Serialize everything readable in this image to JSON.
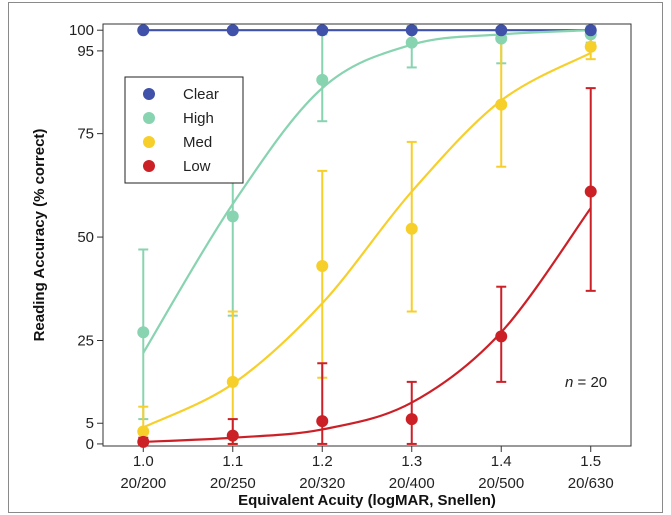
{
  "chart_data": {
    "type": "scatter",
    "ylabel": "Reading Accuracy (% correct)",
    "xlabel": "Equivalent Acuity (logMAR, Snellen)",
    "x": [
      1.0,
      1.1,
      1.2,
      1.3,
      1.4,
      1.5
    ],
    "x_tick_labels": [
      "1.0",
      "1.1",
      "1.2",
      "1.3",
      "1.4",
      "1.5"
    ],
    "x_tick_sublabels": [
      "20/200",
      "20/250",
      "20/320",
      "20/400",
      "20/500",
      "20/630"
    ],
    "y_ticks": [
      0,
      5,
      25,
      50,
      75,
      95,
      100
    ],
    "xlim": [
      0.955,
      1.545
    ],
    "ylim": [
      -0.5,
      101.5
    ],
    "annotation": {
      "italic": "n",
      "rest": " = 20"
    },
    "legend_position": "top-left",
    "series": [
      {
        "name": "Clear",
        "color": "#3f51a9",
        "values": [
          100,
          100,
          100,
          100,
          100,
          100
        ],
        "err_low": [
          0,
          0,
          0,
          0,
          0,
          0
        ],
        "err_high": [
          0,
          0,
          0,
          0,
          0,
          0
        ],
        "fit": [
          100,
          100,
          100,
          100,
          100,
          100
        ]
      },
      {
        "name": "High",
        "color": "#88d3b0",
        "values": [
          27,
          55,
          88,
          97,
          98,
          99
        ],
        "err_low": [
          21,
          24,
          10,
          6,
          6,
          2
        ],
        "err_high": [
          20,
          24,
          11,
          4,
          2,
          2
        ],
        "fit": [
          22,
          58,
          86,
          96.5,
          99,
          100
        ]
      },
      {
        "name": "Med",
        "color": "#f7cf2a",
        "values": [
          3,
          15,
          43,
          52,
          82,
          96
        ],
        "err_low": [
          2,
          15,
          27,
          20,
          15,
          3
        ],
        "err_high": [
          6,
          17,
          23,
          21,
          18,
          3
        ],
        "fit": [
          4,
          14.5,
          34,
          61,
          83,
          94.5
        ]
      },
      {
        "name": "Low",
        "color": "#cc2027",
        "values": [
          0.5,
          2,
          5.5,
          6,
          26,
          61
        ],
        "err_low": [
          0.5,
          2,
          5.5,
          6,
          11,
          24
        ],
        "err_high": [
          1,
          4,
          14,
          9,
          12,
          25
        ],
        "fit": [
          0.5,
          1.5,
          3.5,
          10,
          27,
          57
        ]
      }
    ]
  }
}
